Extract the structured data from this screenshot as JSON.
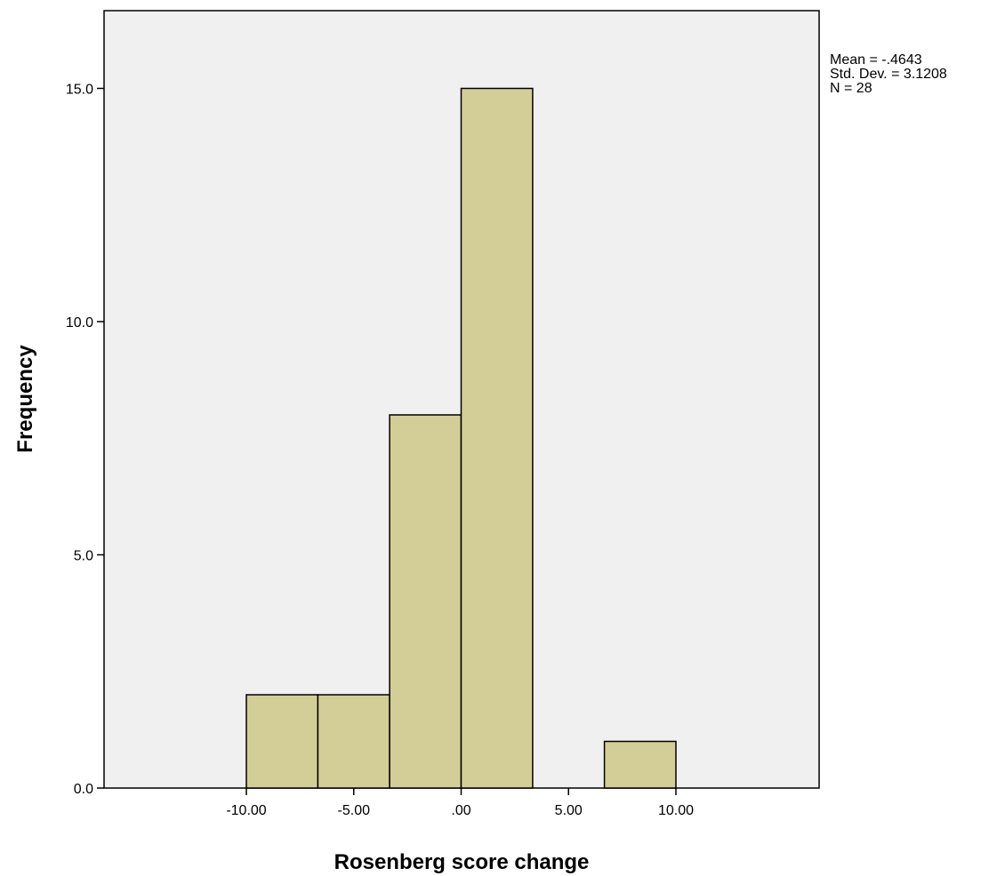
{
  "chart_data": {
    "type": "bar",
    "subtype": "histogram",
    "xlabel": "Rosenberg score change",
    "ylabel": "Frequency",
    "xlim": [
      -11.1,
      22.2
    ],
    "ylim": [
      0,
      16.7
    ],
    "xticks": [
      -10,
      -5,
      0,
      5,
      10
    ],
    "xtick_labels": [
      "-10.00",
      "-5.00",
      ".00",
      "5.00",
      "10.00"
    ],
    "yticks": [
      0,
      5,
      10,
      15
    ],
    "ytick_labels": [
      "0.0",
      "5.0",
      "10.0",
      "15.0"
    ],
    "bins": [
      {
        "start": -10.0,
        "end": -6.67,
        "count": 2
      },
      {
        "start": -6.67,
        "end": -3.33,
        "count": 2
      },
      {
        "start": -3.33,
        "end": 0.0,
        "count": 8
      },
      {
        "start": 0.0,
        "end": 3.33,
        "count": 15
      },
      {
        "start": 3.33,
        "end": 6.67,
        "count": 0
      },
      {
        "start": 6.67,
        "end": 10.0,
        "count": 1
      }
    ],
    "stats": {
      "mean": "Mean = -.4643",
      "std_dev": "Std. Dev. = 3.1208",
      "n": "N = 28"
    },
    "grid": false,
    "legend": "none",
    "colors": {
      "plot_background": "#f0f0f0",
      "bar_fill": "#d3ce97",
      "bar_stroke": "#000000",
      "axis": "#000000"
    }
  }
}
